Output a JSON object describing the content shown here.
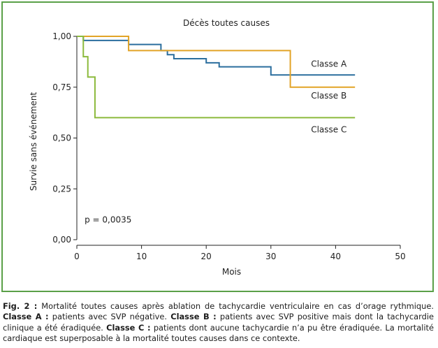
{
  "chart_data": {
    "type": "line",
    "step": true,
    "title": "Décès toutes causes",
    "xlabel": "Mois",
    "ylabel": "Survie sans événement",
    "xlim": [
      0,
      50
    ],
    "ylim": [
      0,
      1
    ],
    "x_ticks": [
      0,
      10,
      20,
      30,
      40,
      50
    ],
    "x_tick_labels": [
      "0",
      "10",
      "20",
      "30",
      "40",
      "50"
    ],
    "y_ticks": [
      0,
      0.25,
      0.5,
      0.75,
      1.0
    ],
    "y_tick_labels": [
      "0,00",
      "0,25",
      "0,50",
      "0,75",
      "1,00"
    ],
    "grid": false,
    "annotation": "p = 0,0035",
    "series": [
      {
        "name": "Classe A",
        "color": "#2b6e9e",
        "x": [
          0,
          1,
          8,
          13,
          14,
          15,
          20,
          22,
          30,
          43
        ],
        "y": [
          1.0,
          0.98,
          0.96,
          0.93,
          0.91,
          0.89,
          0.87,
          0.85,
          0.81,
          0.81
        ]
      },
      {
        "name": "Classe B",
        "color": "#e2a427",
        "x": [
          0,
          1,
          8,
          33,
          43
        ],
        "y": [
          1.0,
          1.0,
          0.93,
          0.75,
          0.75
        ]
      },
      {
        "name": "Classe C",
        "color": "#8cba3c",
        "x": [
          0,
          1,
          1.7,
          2.8,
          43
        ],
        "y": [
          1.0,
          0.9,
          0.8,
          0.6,
          0.6
        ]
      }
    ]
  },
  "caption": {
    "fig_label": "Fig. 2 :",
    "fig_text": " Mortalité toutes causes après ablation de tachycardie ventriculaire en cas d’orage rythmique.",
    "a_label": "Classe A :",
    "a_text": " patients avec SVP négative.",
    "b_label": "Classe B :",
    "b_text": " patients avec SVP positive mais dont la tachycardie clinique a été éradiquée.",
    "c_label": "Classe C :",
    "c_text": " patients dont aucune tachycardie n’a pu être éradiquée. La mortalité cardiaque est superposable à la mortalité toutes causes dans ce contexte."
  },
  "colors": {
    "frame": "#5aa048",
    "axis": "#222222"
  }
}
